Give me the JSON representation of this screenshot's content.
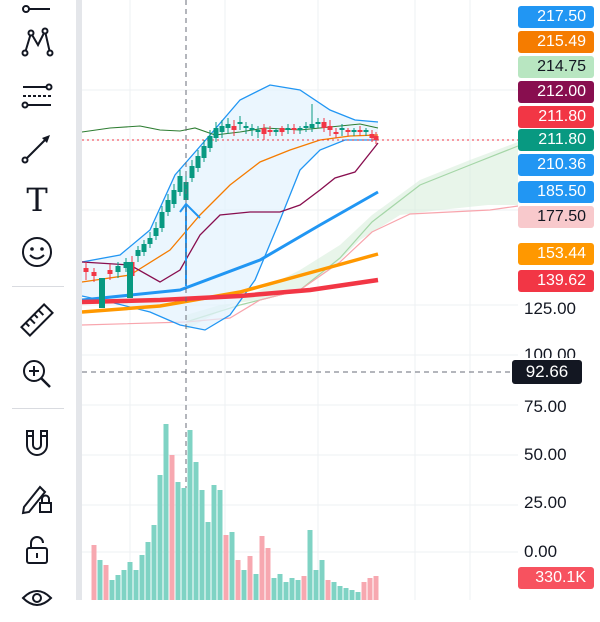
{
  "toolbar": {
    "tools": [
      {
        "name": "trend-line-tool-icon"
      },
      {
        "name": "pattern-tool-icon"
      },
      {
        "name": "prediction-tool-icon"
      },
      {
        "name": "arrow-tool-icon"
      },
      {
        "name": "text-tool-icon"
      },
      {
        "name": "emoji-tool-icon"
      },
      {
        "name": "ruler-tool-icon"
      },
      {
        "name": "zoom-in-tool-icon"
      },
      {
        "name": "magnet-tool-icon"
      },
      {
        "name": "lock-drawings-tool-icon"
      },
      {
        "name": "lock-tool-icon"
      },
      {
        "name": "eye-tool-icon"
      }
    ],
    "text_tool_glyph": "T"
  },
  "price_tags": [
    {
      "label": "217.50",
      "color": "#2196f3"
    },
    {
      "label": "215.49",
      "color": "#f57c00"
    },
    {
      "label": "214.75",
      "color": "#b8e6c1",
      "text_color": "#131722"
    },
    {
      "label": "212.00",
      "color": "#880e4f"
    },
    {
      "label": "211.80",
      "color": "#f23645"
    },
    {
      "label": "211.80",
      "color": "#089981"
    },
    {
      "label": "210.36",
      "color": "#2196f3"
    },
    {
      "label": "185.50",
      "color": "#2196f3"
    },
    {
      "label": "177.50",
      "color": "#f8c9cc",
      "text_color": "#131722"
    },
    {
      "label": "153.44",
      "color": "#ff9800"
    },
    {
      "label": "139.62",
      "color": "#f23645"
    }
  ],
  "axis_labels": {
    "price": [
      "125.00",
      "100.00"
    ],
    "volume": [
      "75.00",
      "50.00",
      "25.00",
      "0.00"
    ]
  },
  "crosshair_price": "92.66",
  "volume_tag": {
    "label": "330.1K",
    "color": "#f7525f"
  },
  "colors": {
    "up": "#089981",
    "down": "#f23645",
    "volume_up": "#7fd3c4",
    "volume_down": "#f7a8b0",
    "bollinger": "#2196f3",
    "ma_orange": "#ff9800",
    "ma_red": "#f23645",
    "ma_blue": "#2196f3",
    "cloud": "#d8efdc"
  }
}
